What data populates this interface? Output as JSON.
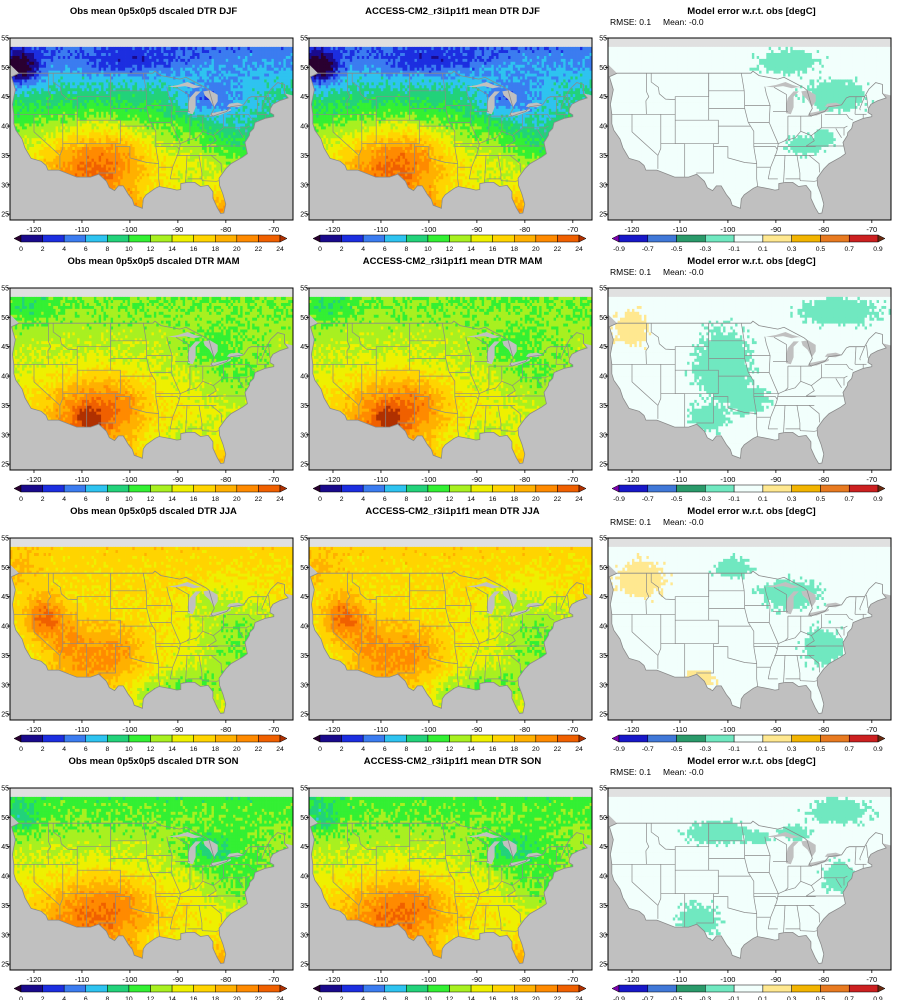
{
  "figure": {
    "seasons": [
      "DJF",
      "MAM",
      "JJA",
      "SON"
    ],
    "columns": [
      {
        "kind": "obs",
        "title_prefix": "Obs mean 0p5x0p5 dscaled DTR"
      },
      {
        "kind": "model",
        "title_prefix": "ACCESS-CM2_r3i1p1f1 mean DTR"
      },
      {
        "kind": "error",
        "title": "Model error w.r.t. obs [degC]"
      }
    ],
    "map_axes": {
      "lon_ticks": [
        "-120",
        "-110",
        "-100",
        "-90",
        "-80",
        "-70"
      ],
      "lat_ticks": [
        "55",
        "50",
        "45",
        "40",
        "35",
        "30",
        "25"
      ],
      "lon_range": [
        -125,
        -66
      ],
      "lat_range": [
        24,
        55
      ]
    },
    "dtr_colorbar": {
      "labels": [
        "0",
        "2",
        "4",
        "6",
        "8",
        "10",
        "12",
        "14",
        "16",
        "18",
        "20",
        "22",
        "24"
      ],
      "colors": [
        "#2a0030",
        "#1a0a8c",
        "#1c2ee0",
        "#3b7cf0",
        "#2ec3f0",
        "#22d27a",
        "#33f033",
        "#a8f020",
        "#eef000",
        "#ffd400",
        "#ffb000",
        "#ff8a00",
        "#f06000",
        "#b03000"
      ]
    },
    "error_colorbar": {
      "labels": [
        "-0.9",
        "-0.7",
        "-0.5",
        "-0.3",
        "-0.1",
        "0.1",
        "0.3",
        "0.5",
        "0.7",
        "0.9"
      ],
      "colors": [
        "#7b00b0",
        "#1818c8",
        "#4078d8",
        "#2a9a6a",
        "#70e8c0",
        "#f2fffc",
        "#ffe890",
        "#f2b400",
        "#e87a20",
        "#cc2020",
        "#6a2a10"
      ]
    },
    "error_stats": [
      {
        "rmse": "RMSE: 0.1",
        "mean": "Mean: -0.0"
      },
      {
        "rmse": "RMSE: 0.1",
        "mean": "Mean: -0.0"
      },
      {
        "rmse": "RMSE: 0.1",
        "mean": "Mean: -0.0"
      },
      {
        "rmse": "RMSE: 0.1",
        "mean": "Mean: -0.0"
      }
    ],
    "colors": {
      "ocean": "#c0c0c0",
      "border": "#8a8a8a",
      "missing": "#e0e0e0"
    }
  }
}
